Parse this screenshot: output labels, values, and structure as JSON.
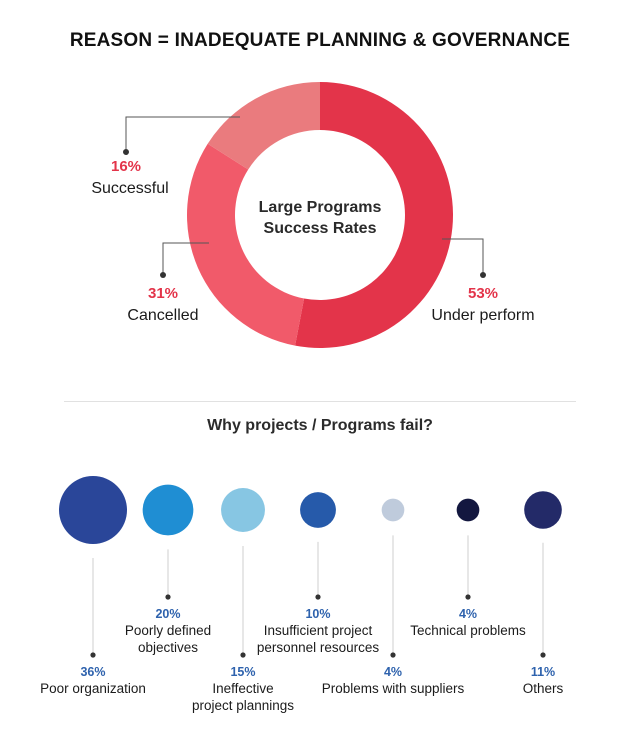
{
  "header": {
    "title": "REASON = INADEQUATE PLANNING & GOVERNANCE"
  },
  "chart_data": [
    {
      "type": "pie",
      "title": "REASON = INADEQUATE PLANNING & GOVERNANCE",
      "center_label": [
        "Large Programs",
        "Success Rates"
      ],
      "series": [
        {
          "name": "Under perform",
          "value": 53,
          "percent_label": "53%",
          "color": "#e3344a"
        },
        {
          "name": "Cancelled",
          "value": 31,
          "percent_label": "31%",
          "color": "#f15a6a"
        },
        {
          "name": "Successful",
          "value": 16,
          "percent_label": "16%",
          "color": "#ea7b7e"
        }
      ],
      "accent_text_color": "#e3344a"
    },
    {
      "type": "scatter",
      "title": "Why projects / Programs fail?",
      "series": [
        {
          "name": "Poor organization",
          "lines": [
            "Poor organization"
          ],
          "value": 36,
          "percent_label": "36%",
          "color": "#2a4699",
          "label_position": "bottom"
        },
        {
          "name": "Poorly defined objectives",
          "lines": [
            "Poorly defined",
            "objectives"
          ],
          "value": 20,
          "percent_label": "20%",
          "color": "#1f8ed3",
          "label_position": "top"
        },
        {
          "name": "Ineffective project plannings",
          "lines": [
            "Ineffective",
            "project plannings"
          ],
          "value": 15,
          "percent_label": "15%",
          "color": "#87c6e3",
          "label_position": "bottom"
        },
        {
          "name": "Insufficient project personnel resources",
          "lines": [
            "Insufficient project",
            "personnel resources"
          ],
          "value": 10,
          "percent_label": "10%",
          "color": "#265aaa",
          "label_position": "top"
        },
        {
          "name": "Problems with suppliers",
          "lines": [
            "Problems with suppliers"
          ],
          "value": 4,
          "percent_label": "4%",
          "color": "#bfcbdc",
          "label_position": "bottom"
        },
        {
          "name": "Technical problems",
          "lines": [
            "Technical problems"
          ],
          "value": 4,
          "percent_label": "4%",
          "color": "#13173f",
          "label_position": "top"
        },
        {
          "name": "Others",
          "lines": [
            "Others"
          ],
          "value": 11,
          "percent_label": "11%",
          "color": "#232a68",
          "label_position": "bottom"
        }
      ]
    }
  ],
  "section2": {
    "title": "Why projects / Programs fail?"
  }
}
